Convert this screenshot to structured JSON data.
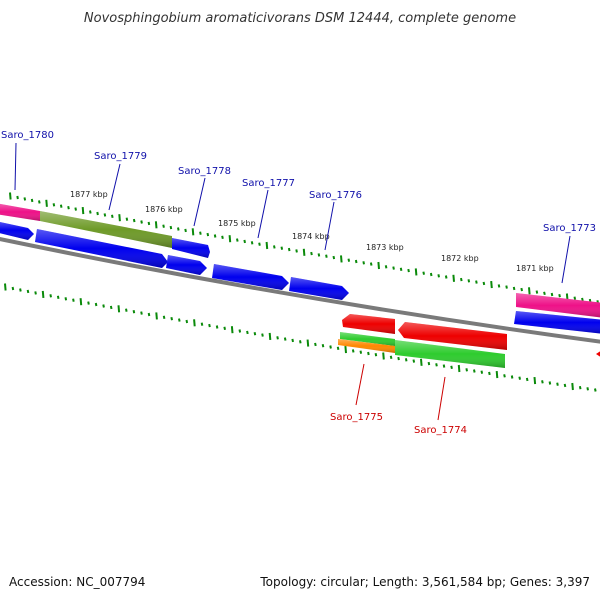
{
  "title": "Novosphingobium aromaticivorans DSM 12444, complete genome",
  "footer": {
    "accession": "Accession: NC_007794",
    "summary": "Topology: circular; Length: 3,561,584 bp; Genes: 3,397"
  },
  "colors": {
    "label_forward": "#1010aa",
    "label_reverse": "#cc0000",
    "tick": "#0a8a0a",
    "backbone": "#7a7a7a",
    "blue": "#0000ee",
    "red": "#ee0000",
    "pink": "#ee1188",
    "olive": "#6e9a28",
    "green": "#2ecc2e",
    "orange": "#ff8800"
  },
  "kbp_labels": [
    "1877 kbp",
    "1876 kbp",
    "1875 kbp",
    "1874 kbp",
    "1873 kbp",
    "1872 kbp",
    "1871 kbp"
  ],
  "gene_labels": {
    "saro1780": "Saro_1780",
    "saro1779": "Saro_1779",
    "saro1778": "Saro_1778",
    "saro1777": "Saro_1777",
    "saro1776": "Saro_1776",
    "saro1773": "Saro_1773",
    "saro1775": "Saro_1775",
    "saro1774": "Saro_1774"
  }
}
